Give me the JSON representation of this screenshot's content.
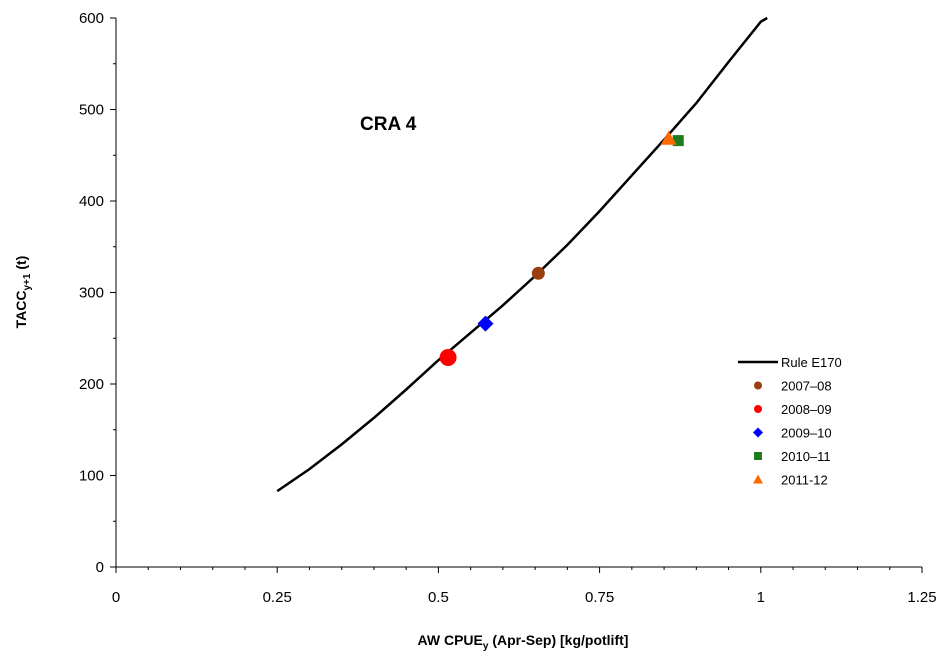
{
  "chart_data": {
    "type": "scatter",
    "annotation": "CRA 4",
    "xlabel": {
      "main": "AW CPUE",
      "sub": "y",
      "rest": " (Apr-Sep)  [kg/potlift]"
    },
    "ylabel": {
      "main": "TACC",
      "sub": "y+1",
      "rest": " (t)"
    },
    "xlim": [
      0,
      1.25
    ],
    "ylim": [
      0,
      600
    ],
    "x_ticks": [
      0,
      0.25,
      0.5,
      0.75,
      1,
      1.25
    ],
    "x_tick_labels": [
      "0",
      "0.25",
      "0.5",
      "0.75",
      "1",
      "1.25"
    ],
    "y_ticks": [
      0,
      100,
      200,
      300,
      400,
      500,
      600
    ],
    "y_tick_labels": [
      "0",
      "100",
      "200",
      "300",
      "400",
      "500",
      "600"
    ],
    "grid": false,
    "legend_position": "bottom-right",
    "line_series": {
      "name": "Rule E170",
      "color": "#000000",
      "points": [
        [
          0.25,
          83
        ],
        [
          0.3,
          107
        ],
        [
          0.35,
          134
        ],
        [
          0.4,
          163
        ],
        [
          0.45,
          194
        ],
        [
          0.5,
          226
        ],
        [
          0.55,
          256
        ],
        [
          0.6,
          286
        ],
        [
          0.65,
          318
        ],
        [
          0.7,
          352
        ],
        [
          0.75,
          389
        ],
        [
          0.8,
          428
        ],
        [
          0.85,
          467
        ],
        [
          0.9,
          507
        ],
        [
          0.95,
          552
        ],
        [
          1.0,
          596
        ],
        [
          1.01,
          600
        ]
      ]
    },
    "point_series": [
      {
        "name": "2007–08",
        "x": 0.655,
        "y": 321,
        "marker": "circle",
        "color": "#9B3E0F"
      },
      {
        "name": "2008–09",
        "x": 0.515,
        "y": 229,
        "marker": "circle-large",
        "color": "#FF0000"
      },
      {
        "name": "2009–10",
        "x": 0.573,
        "y": 266,
        "marker": "diamond",
        "color": "#0000FF"
      },
      {
        "name": "2010–11",
        "x": 0.872,
        "y": 466,
        "marker": "square",
        "color": "#1E7B1E"
      },
      {
        "name": "2011-12",
        "x": 0.857,
        "y": 468,
        "marker": "triangle",
        "color": "#FF6A00"
      }
    ]
  }
}
